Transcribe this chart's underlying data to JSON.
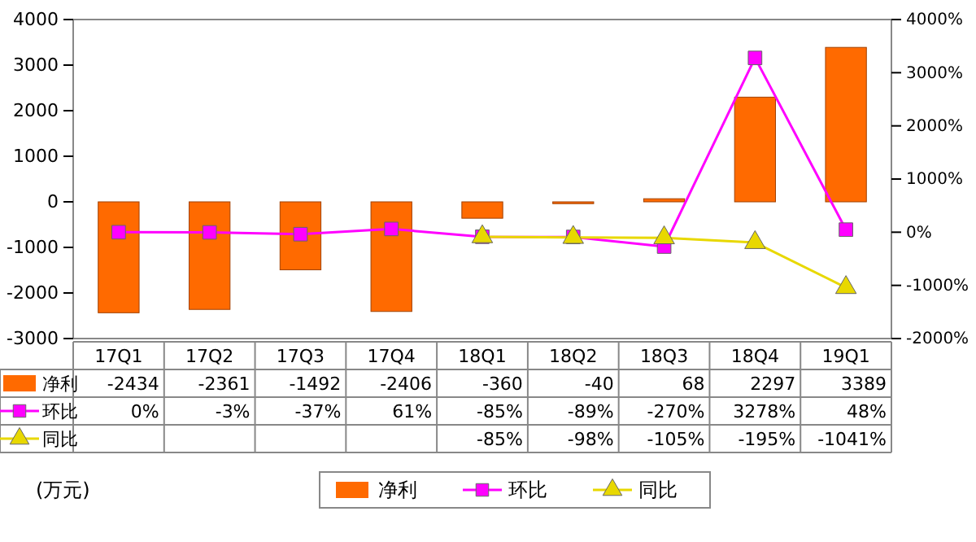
{
  "chart_data": {
    "type": "bar",
    "categories": [
      "17Q1",
      "17Q2",
      "17Q3",
      "17Q4",
      "18Q1",
      "18Q2",
      "18Q3",
      "18Q4",
      "19Q1"
    ],
    "series": [
      {
        "name": "净利",
        "color": "#ff6a00",
        "values": [
          -2434,
          -2361,
          -1492,
          -2406,
          -360,
          -40,
          68,
          2297,
          3389
        ],
        "value_labels": [
          "-2434",
          "-2361",
          "-1492",
          "-2406",
          "-360",
          "-40",
          "68",
          "2297",
          "3389"
        ]
      },
      {
        "name": "环比",
        "type": "line",
        "axis": "y2",
        "marker": "square",
        "color": "#ff00ff",
        "values": [
          0,
          -3,
          -37,
          61,
          -85,
          -89,
          -270,
          3278,
          48
        ],
        "value_labels": [
          "0%",
          "-3%",
          "-37%",
          "61%",
          "-85%",
          "-89%",
          "-270%",
          "3278%",
          "48%"
        ]
      },
      {
        "name": "同比",
        "type": "line",
        "axis": "y2",
        "marker": "triangle",
        "color": "#e8d800",
        "values": [
          null,
          null,
          null,
          null,
          -85,
          -98,
          -105,
          -195,
          -1041
        ],
        "value_labels": [
          null,
          null,
          null,
          null,
          "-85%",
          "-98%",
          "-105%",
          "-195%",
          "-1041%"
        ]
      }
    ],
    "ylim": [
      -3000,
      4000
    ],
    "yticks": [
      -3000,
      -2000,
      -1000,
      0,
      1000,
      2000,
      3000,
      4000
    ],
    "y2lim": [
      -2000,
      4000
    ],
    "y2ticks": [
      {
        "value": -2000,
        "label": "-2000%"
      },
      {
        "value": -1000,
        "label": "-1000%"
      },
      {
        "value": 0,
        "label": "0%"
      },
      {
        "value": 1000,
        "label": "1000%"
      },
      {
        "value": 2000,
        "label": "2000%"
      },
      {
        "value": 3000,
        "label": "3000%"
      },
      {
        "value": 4000,
        "label": "4000%"
      }
    ],
    "legend": "bottom",
    "line_style": "solid",
    "annotations": [
      "(万元)"
    ]
  }
}
